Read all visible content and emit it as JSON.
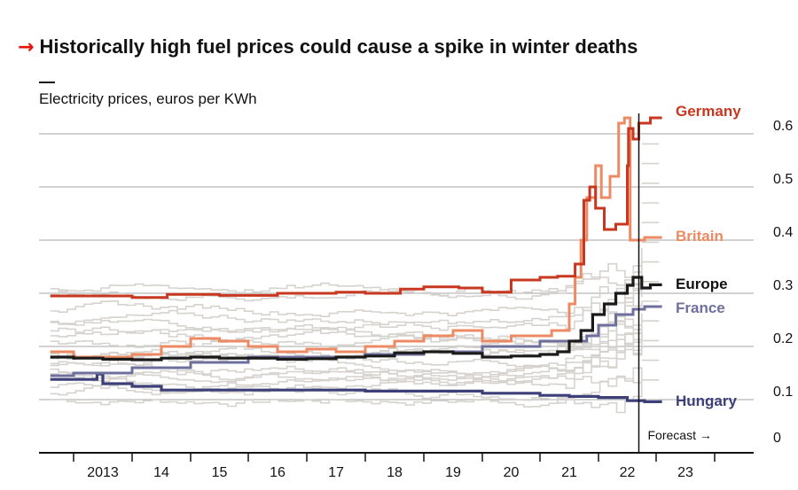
{
  "title_arrow": "→",
  "title": "Historically high fuel prices could cause a spike in winter deaths",
  "subtitle": "Electricity prices, euros per KWh",
  "colors": {
    "germany": "#c8371f",
    "britain": "#ec8a63",
    "europe": "#1a1a1a",
    "france": "#6f6f9e",
    "hungary": "#3c3f78",
    "background_series": "#d6d3cf",
    "grid": "#b8b8b8"
  },
  "chart_data": {
    "type": "line",
    "title": "Historically high fuel prices could cause a spike in winter deaths",
    "ylabel": "Electricity prices, euros per KWh",
    "xlim": [
      2012.5,
      2024.0
    ],
    "ylim": [
      0,
      0.65
    ],
    "y_ticks": [
      {
        "value": 0,
        "label": "0"
      },
      {
        "value": 0.1,
        "label": "0.1"
      },
      {
        "value": 0.2,
        "label": "0.2"
      },
      {
        "value": 0.3,
        "label": "0.3"
      },
      {
        "value": 0.4,
        "label": "0.4"
      },
      {
        "value": 0.5,
        "label": "0.5"
      },
      {
        "value": 0.6,
        "label": "0.6"
      }
    ],
    "x_ticks": [
      {
        "value": 2013,
        "label": "2013"
      },
      {
        "value": 2014,
        "label": "14"
      },
      {
        "value": 2015,
        "label": "15"
      },
      {
        "value": 2016,
        "label": "16"
      },
      {
        "value": 2017,
        "label": "17"
      },
      {
        "value": 2018,
        "label": "18"
      },
      {
        "value": 2019,
        "label": "19"
      },
      {
        "value": 2020,
        "label": "20"
      },
      {
        "value": 2021,
        "label": "21"
      },
      {
        "value": 2022,
        "label": "22"
      },
      {
        "value": 2023,
        "label": "23"
      }
    ],
    "forecast_start": 2022.7,
    "forecast_label": "Forecast →",
    "series": [
      {
        "name": "Germany",
        "key": "germany",
        "x": [
          2012.6,
          2013.5,
          2014.0,
          2014.6,
          2015.5,
          2016.5,
          2017.5,
          2018.0,
          2018.6,
          2019.0,
          2019.6,
          2020.0,
          2020.5,
          2021.0,
          2021.3,
          2021.6,
          2021.75,
          2021.85,
          2021.95,
          2022.1,
          2022.3,
          2022.5,
          2022.52,
          2022.6,
          2022.7,
          2022.9,
          2023.1
        ],
        "y": [
          0.295,
          0.295,
          0.292,
          0.298,
          0.296,
          0.3,
          0.302,
          0.3,
          0.308,
          0.312,
          0.31,
          0.302,
          0.325,
          0.33,
          0.332,
          0.355,
          0.475,
          0.5,
          0.46,
          0.42,
          0.43,
          0.54,
          0.61,
          0.59,
          0.62,
          0.63,
          0.63
        ]
      },
      {
        "name": "Britain",
        "key": "britain",
        "x": [
          2012.6,
          2013.0,
          2014.0,
          2014.5,
          2015.0,
          2015.5,
          2016.0,
          2016.5,
          2017.0,
          2017.5,
          2018.0,
          2018.5,
          2019.0,
          2019.5,
          2020.0,
          2020.5,
          2021.0,
          2021.2,
          2021.5,
          2021.6,
          2021.7,
          2021.8,
          2021.95,
          2022.05,
          2022.2,
          2022.35,
          2022.45,
          2022.55,
          2022.7,
          2022.8,
          2023.1
        ],
        "y": [
          0.19,
          0.18,
          0.185,
          0.2,
          0.215,
          0.21,
          0.2,
          0.19,
          0.195,
          0.19,
          0.2,
          0.21,
          0.22,
          0.23,
          0.21,
          0.22,
          0.22,
          0.23,
          0.28,
          0.33,
          0.4,
          0.48,
          0.54,
          0.48,
          0.52,
          0.62,
          0.63,
          0.4,
          0.4,
          0.405,
          0.405
        ]
      },
      {
        "name": "Europe",
        "key": "europe",
        "x": [
          2012.6,
          2013.0,
          2013.5,
          2014.0,
          2014.5,
          2015.0,
          2015.5,
          2016.0,
          2016.5,
          2017.0,
          2017.5,
          2018.0,
          2018.5,
          2019.0,
          2019.5,
          2020.0,
          2020.5,
          2021.0,
          2021.3,
          2021.5,
          2021.7,
          2021.9,
          2022.1,
          2022.3,
          2022.5,
          2022.6,
          2022.75,
          2022.9,
          2023.1
        ],
        "y": [
          0.18,
          0.178,
          0.176,
          0.175,
          0.178,
          0.18,
          0.178,
          0.178,
          0.176,
          0.177,
          0.18,
          0.182,
          0.188,
          0.19,
          0.187,
          0.18,
          0.182,
          0.185,
          0.19,
          0.21,
          0.23,
          0.26,
          0.28,
          0.3,
          0.315,
          0.33,
          0.31,
          0.316,
          0.316
        ]
      },
      {
        "name": "France",
        "key": "france",
        "x": [
          2012.6,
          2013.0,
          2014.0,
          2015.0,
          2016.0,
          2017.0,
          2018.0,
          2019.0,
          2020.0,
          2021.0,
          2021.5,
          2021.8,
          2022.0,
          2022.3,
          2022.6,
          2022.8,
          2023.1
        ],
        "y": [
          0.145,
          0.15,
          0.16,
          0.17,
          0.18,
          0.18,
          0.185,
          0.19,
          0.2,
          0.21,
          0.21,
          0.22,
          0.24,
          0.26,
          0.27,
          0.275,
          0.275
        ]
      },
      {
        "name": "Hungary",
        "key": "hungary",
        "x": [
          2012.6,
          2013.3,
          2013.4,
          2013.5,
          2014.0,
          2014.5,
          2015.0,
          2016.0,
          2017.0,
          2018.0,
          2019.0,
          2020.0,
          2021.0,
          2021.5,
          2022.0,
          2022.5,
          2022.8,
          2023.1
        ],
        "y": [
          0.138,
          0.138,
          0.148,
          0.13,
          0.125,
          0.118,
          0.118,
          0.118,
          0.118,
          0.116,
          0.116,
          0.112,
          0.108,
          0.106,
          0.104,
          0.098,
          0.096,
          0.096
        ]
      }
    ]
  },
  "series_labels": {
    "germany": "Germany",
    "britain": "Britain",
    "europe": "Europe",
    "france": "France",
    "hungary": "Hungary"
  }
}
